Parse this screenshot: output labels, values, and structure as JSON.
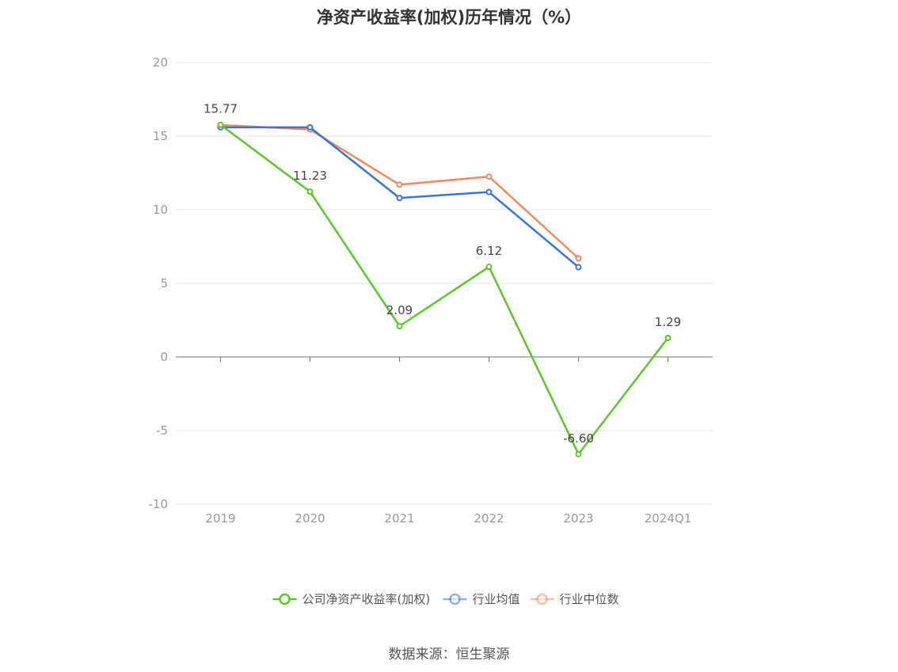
{
  "chart_data": {
    "type": "line",
    "title": "净资产收益率(加权)历年情况（%）",
    "categories": [
      "2019",
      "2020",
      "2021",
      "2022",
      "2023",
      "2024Q1"
    ],
    "ylim": [
      -10,
      20
    ],
    "yticks": [
      -10,
      -5,
      0,
      5,
      10,
      15,
      20
    ],
    "grid": true,
    "legend_position": "bottom",
    "series": [
      {
        "name": "公司净资产收益率(加权)",
        "color": "#5cc72a",
        "values": [
          15.77,
          11.23,
          2.09,
          6.12,
          -6.6,
          1.29
        ],
        "labels": [
          "15.77",
          "11.23",
          "2.09",
          "6.12",
          "-6.60",
          "1.29"
        ]
      },
      {
        "name": "行业均值",
        "color": "#3b74d9",
        "values": [
          15.6,
          15.6,
          10.8,
          11.2,
          6.1,
          null
        ]
      },
      {
        "name": "行业中位数",
        "color": "#f08b5e",
        "values": [
          15.75,
          15.45,
          11.7,
          12.25,
          6.7,
          null
        ]
      }
    ]
  },
  "footer": {
    "source": "数据来源：恒生聚源"
  }
}
